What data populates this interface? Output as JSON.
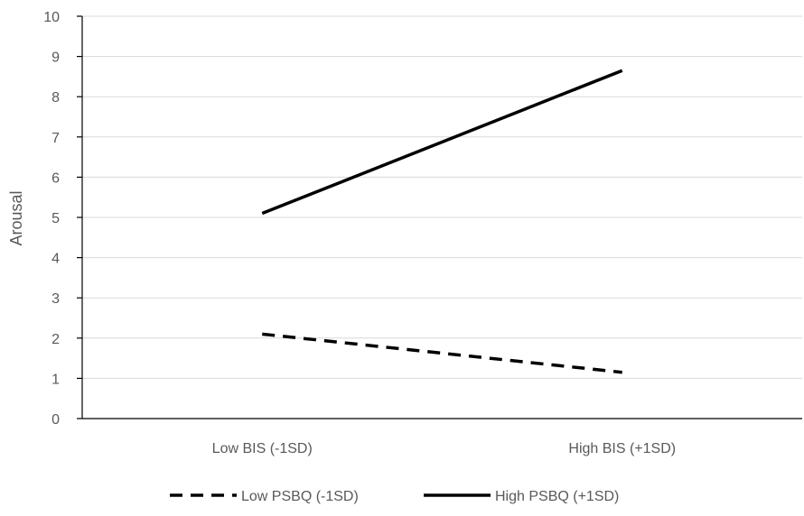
{
  "chart_data": {
    "type": "line",
    "title": "",
    "xlabel": "",
    "ylabel": "Arousal",
    "categories": [
      "Low BIS (-1SD)",
      "High BIS (+1SD)"
    ],
    "series": [
      {
        "name": "Low PSBQ (-1SD)",
        "values": [
          2.1,
          1.15
        ],
        "color": "#000000",
        "line_style": "dashed"
      },
      {
        "name": "High PSBQ (+1SD)",
        "values": [
          5.1,
          8.65
        ],
        "color": "#000000",
        "line_style": "solid"
      }
    ],
    "ylim": [
      0,
      10
    ],
    "yticks": [
      "0",
      "1",
      "2",
      "3",
      "4",
      "5",
      "6",
      "7",
      "8",
      "9",
      "10"
    ],
    "grid": true,
    "legend_position": "bottom"
  }
}
